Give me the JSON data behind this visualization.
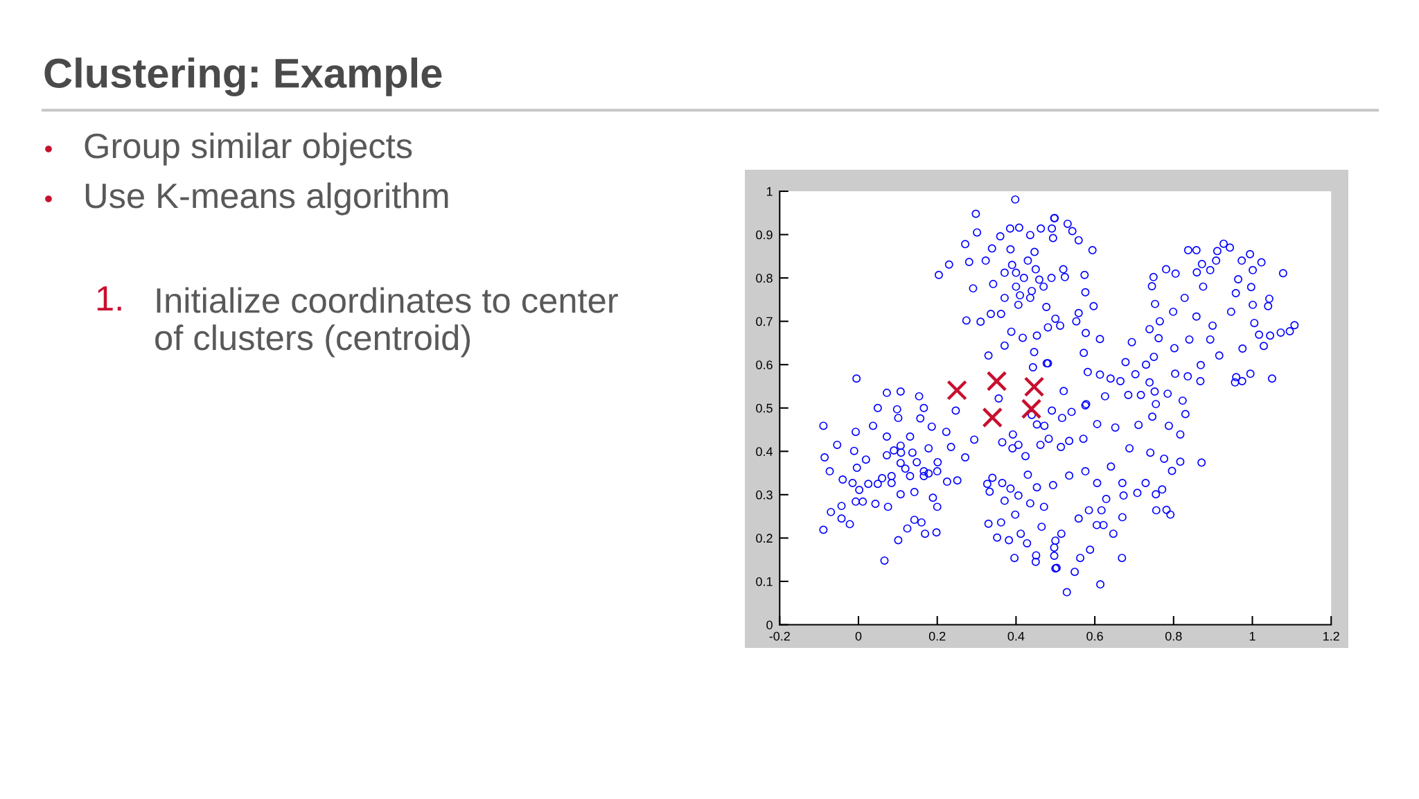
{
  "chart_data": {
    "type": "scatter",
    "title": "Clustering: Example",
    "annotations": [
      "Group similar objects",
      "Use K-means algorithm",
      "1.",
      "Initialize coordinates to center\nof clusters (centroid)"
    ],
    "xlim": [
      -0.2,
      1.2
    ],
    "ylim": [
      0,
      1
    ],
    "xticks": [
      -0.2,
      0,
      0.2,
      0.4,
      0.6,
      0.8,
      1,
      1.2
    ],
    "yticks": [
      0,
      0.1,
      0.2,
      0.3,
      0.4,
      0.5,
      0.6,
      0.7,
      0.8,
      0.9,
      1
    ],
    "series": [
      {
        "color": "#0000ff",
        "marker": "circle",
        "x": [
          -0.089,
          -0.054,
          -0.086,
          -0.073,
          -0.089,
          -0.07,
          -0.043,
          -0.022,
          -0.043,
          -0.011,
          -0.007,
          -0.04,
          -0.015,
          -0.007,
          0.011,
          0.037,
          0.049,
          0.101,
          0.098,
          0.166,
          0.157,
          0.186,
          0.247,
          0.294,
          0.271,
          0.223,
          0.235,
          0.251,
          0.225,
          0.2,
          0.189,
          0.2,
          0.198,
          0.169,
          0.16,
          0.142,
          0.124,
          0.101,
          0.066,
          0.075,
          0.043,
          0.049,
          0.084,
          0.108,
          0.131,
          0.166,
          0.142,
          0.107,
          0.019,
          -0.004,
          0.002,
          0.072,
          0.025,
          0.178,
          0.201,
          0.119,
          0.072,
          0.09,
          0.107,
          0.137,
          0.166,
          0.131,
          0.084,
          0.107,
          0.148,
          0.06,
          0.178,
          -0.005,
          0.072,
          0.107,
          0.154
        ],
        "values": [
          0.459,
          0.415,
          0.386,
          0.354,
          0.219,
          0.26,
          0.245,
          0.232,
          0.274,
          0.401,
          0.445,
          0.335,
          0.327,
          0.284,
          0.284,
          0.459,
          0.5,
          0.477,
          0.497,
          0.5,
          0.476,
          0.457,
          0.494,
          0.427,
          0.386,
          0.445,
          0.41,
          0.333,
          0.33,
          0.354,
          0.293,
          0.272,
          0.213,
          0.21,
          0.236,
          0.242,
          0.222,
          0.195,
          0.148,
          0.272,
          0.279,
          0.325,
          0.343,
          0.397,
          0.434,
          0.354,
          0.306,
          0.301,
          0.381,
          0.362,
          0.311,
          0.434,
          0.325,
          0.407,
          0.375,
          0.36,
          0.391,
          0.402,
          0.413,
          0.397,
          0.343,
          0.343,
          0.327,
          0.373,
          0.375,
          0.338,
          0.349,
          0.568,
          0.535,
          0.538,
          0.527
        ]
      },
      {
        "color": "#0000ff",
        "marker": "circle",
        "x": [
          0.398,
          0.298,
          0.301,
          0.271,
          0.23,
          0.204,
          0.281,
          0.291,
          0.274,
          0.31,
          0.33,
          0.371,
          0.443,
          0.478,
          0.446,
          0.417,
          0.388,
          0.453,
          0.481,
          0.336,
          0.362,
          0.371,
          0.339,
          0.323,
          0.36,
          0.385,
          0.408,
          0.436,
          0.463,
          0.491,
          0.497,
          0.494,
          0.342,
          0.4,
          0.459,
          0.447,
          0.386,
          0.406,
          0.436,
          0.477,
          0.371,
          0.5,
          0.498,
          0.531,
          0.543,
          0.559,
          0.594,
          0.574,
          0.576,
          0.597,
          0.559,
          0.553,
          0.577,
          0.613,
          0.572,
          0.524,
          0.512,
          0.481,
          0.42,
          0.45,
          0.4,
          0.47,
          0.43,
          0.49,
          0.41,
          0.44,
          0.39,
          0.52
        ],
        "values": [
          0.981,
          0.948,
          0.905,
          0.878,
          0.831,
          0.807,
          0.837,
          0.776,
          0.702,
          0.699,
          0.621,
          0.644,
          0.594,
          0.603,
          0.629,
          0.662,
          0.676,
          0.667,
          0.686,
          0.717,
          0.717,
          0.754,
          0.868,
          0.84,
          0.896,
          0.914,
          0.916,
          0.899,
          0.914,
          0.914,
          0.938,
          0.892,
          0.786,
          0.812,
          0.796,
          0.86,
          0.866,
          0.738,
          0.754,
          0.733,
          0.812,
          0.706,
          0.938,
          0.925,
          0.908,
          0.887,
          0.864,
          0.807,
          0.767,
          0.735,
          0.719,
          0.7,
          0.673,
          0.659,
          0.627,
          0.802,
          0.69,
          0.603,
          0.8,
          0.82,
          0.78,
          0.78,
          0.84,
          0.8,
          0.76,
          0.77,
          0.83,
          0.82
        ]
      },
      {
        "color": "#0000ff",
        "marker": "circle",
        "x": [
          0.837,
          0.858,
          0.927,
          0.943,
          0.911,
          0.994,
          1.023,
          0.973,
          1.078,
          1.001,
          0.997,
          1.043,
          1.04,
          1.001,
          1.107,
          1.095,
          1.072,
          1.045,
          1.029,
          1.05,
          0.995,
          0.974,
          0.956,
          0.959,
          0.868,
          0.836,
          0.804,
          0.802,
          0.762,
          0.739,
          0.765,
          0.694,
          0.753,
          0.745,
          0.749,
          0.781,
          0.805,
          0.859,
          0.872,
          0.908,
          0.893,
          0.875,
          0.828,
          0.799,
          0.858,
          0.899,
          0.946,
          0.958,
          0.964,
          1.005,
          0.975,
          0.916,
          0.869,
          0.84,
          0.893,
          1.017
        ],
        "values": [
          0.864,
          0.864,
          0.879,
          0.87,
          0.862,
          0.855,
          0.836,
          0.84,
          0.811,
          0.818,
          0.779,
          0.752,
          0.735,
          0.738,
          0.691,
          0.677,
          0.674,
          0.667,
          0.643,
          0.568,
          0.579,
          0.562,
          0.559,
          0.571,
          0.562,
          0.573,
          0.579,
          0.638,
          0.661,
          0.682,
          0.7,
          0.652,
          0.74,
          0.781,
          0.802,
          0.82,
          0.81,
          0.813,
          0.832,
          0.84,
          0.818,
          0.78,
          0.754,
          0.722,
          0.711,
          0.69,
          0.722,
          0.765,
          0.797,
          0.696,
          0.637,
          0.621,
          0.599,
          0.658,
          0.658,
          0.669
        ]
      },
      {
        "color": "#0000ff",
        "marker": "circle",
        "x": [
          0.678,
          0.75,
          0.73,
          0.739,
          0.703,
          0.665,
          0.64,
          0.613,
          0.582,
          0.521,
          0.626,
          0.685,
          0.752,
          0.785,
          0.823,
          0.717,
          0.755,
          0.578,
          0.44,
          0.453,
          0.472,
          0.491,
          0.365,
          0.392,
          0.406,
          0.391,
          0.424,
          0.483,
          0.462,
          0.34,
          0.327,
          0.333,
          0.365,
          0.386,
          0.371,
          0.398,
          0.33,
          0.362,
          0.352,
          0.382,
          0.396,
          0.412,
          0.428,
          0.451,
          0.45,
          0.5,
          0.497,
          0.5,
          0.465,
          0.471,
          0.436,
          0.406,
          0.43,
          0.453,
          0.494,
          0.529,
          0.614,
          0.669,
          0.588,
          0.563,
          0.549,
          0.503,
          0.497,
          0.647,
          0.605,
          0.622,
          0.67,
          0.756,
          0.792,
          0.782,
          0.871,
          0.817,
          0.817,
          0.796,
          0.776,
          0.83,
          0.788,
          0.755,
          0.771,
          0.708,
          0.673,
          0.617,
          0.585,
          0.559,
          0.515,
          0.517,
          0.541,
          0.576,
          0.535,
          0.514,
          0.571,
          0.606,
          0.652,
          0.711,
          0.746,
          0.688,
          0.741,
          0.641,
          0.606,
          0.576,
          0.535,
          0.67,
          0.729,
          0.629,
          0.356
        ],
        "values": [
          0.606,
          0.618,
          0.6,
          0.559,
          0.578,
          0.562,
          0.568,
          0.577,
          0.583,
          0.539,
          0.527,
          0.53,
          0.538,
          0.533,
          0.517,
          0.53,
          0.509,
          0.509,
          0.484,
          0.462,
          0.459,
          0.494,
          0.421,
          0.439,
          0.415,
          0.407,
          0.389,
          0.429,
          0.415,
          0.339,
          0.325,
          0.307,
          0.327,
          0.314,
          0.286,
          0.254,
          0.233,
          0.236,
          0.201,
          0.195,
          0.154,
          0.21,
          0.188,
          0.16,
          0.145,
          0.13,
          0.178,
          0.194,
          0.226,
          0.272,
          0.28,
          0.298,
          0.346,
          0.317,
          0.322,
          0.075,
          0.093,
          0.154,
          0.173,
          0.154,
          0.122,
          0.131,
          0.159,
          0.21,
          0.23,
          0.23,
          0.248,
          0.264,
          0.254,
          0.265,
          0.374,
          0.376,
          0.439,
          0.355,
          0.383,
          0.486,
          0.459,
          0.301,
          0.312,
          0.304,
          0.298,
          0.264,
          0.264,
          0.245,
          0.21,
          0.477,
          0.491,
          0.506,
          0.424,
          0.41,
          0.429,
          0.463,
          0.455,
          0.461,
          0.48,
          0.407,
          0.397,
          0.365,
          0.327,
          0.354,
          0.344,
          0.327,
          0.327,
          0.29,
          0.522
        ]
      },
      {
        "color": "#c8102e",
        "marker": "cross",
        "x": [
          0.25,
          0.351,
          0.446,
          0.34,
          0.439
        ],
        "values": [
          0.541,
          0.562,
          0.549,
          0.478,
          0.498
        ]
      }
    ]
  }
}
